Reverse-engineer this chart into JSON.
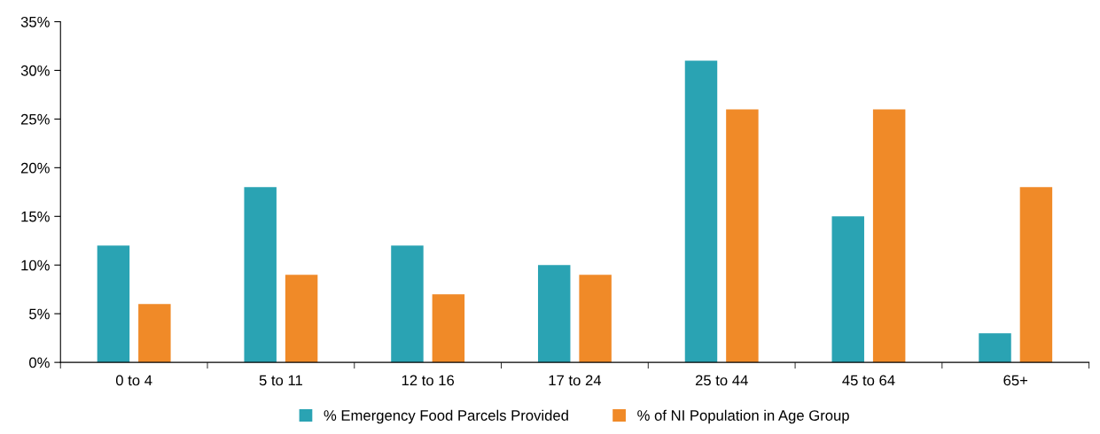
{
  "chart_data": {
    "type": "bar",
    "categories": [
      "0 to 4",
      "5 to 11",
      "12 to 16",
      "17 to 24",
      "25 to 44",
      "45 to 64",
      "65+"
    ],
    "series": [
      {
        "name": "% Emergency Food Parcels Provided",
        "color": "#2aa3b3",
        "values": [
          12,
          18,
          12,
          10,
          31,
          15,
          3
        ]
      },
      {
        "name": "% of NI Population in Age Group",
        "color": "#f08a28",
        "values": [
          6,
          9,
          7,
          9,
          26,
          26,
          18
        ]
      }
    ],
    "ylim": [
      0,
      35
    ],
    "yticks": [
      {
        "value": 0,
        "label": "0%"
      },
      {
        "value": 5,
        "label": "5%"
      },
      {
        "value": 10,
        "label": "10%"
      },
      {
        "value": 15,
        "label": "15%"
      },
      {
        "value": 20,
        "label": "20%"
      },
      {
        "value": 25,
        "label": "25%"
      },
      {
        "value": 30,
        "label": "30%"
      },
      {
        "value": 35,
        "label": "35%"
      }
    ],
    "grid": false,
    "legend": "bottom"
  }
}
